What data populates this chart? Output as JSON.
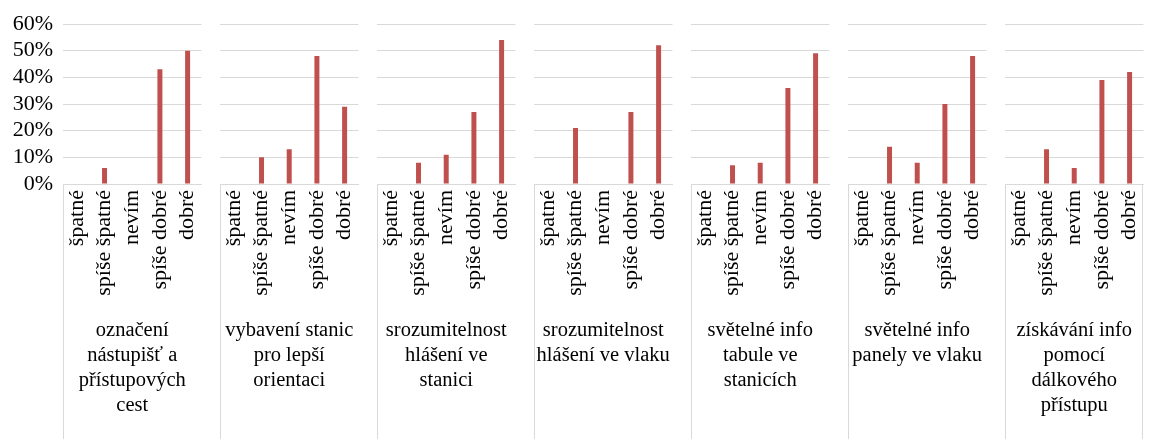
{
  "chart_data": [
    {
      "type": "bar",
      "xlabel": "označení nástupišť a přístupových cest",
      "categories": [
        "špatné",
        "spíše špatné",
        "nevím",
        "spíše dobré",
        "dobré"
      ],
      "values": [
        0,
        6,
        0,
        43,
        50
      ],
      "color": "#c0504d",
      "ylim": [
        0,
        60
      ],
      "yticks": [
        {
          "value": 0,
          "label": "0%"
        },
        {
          "value": 10,
          "label": "10%"
        },
        {
          "value": 20,
          "label": "20%"
        },
        {
          "value": 30,
          "label": "30%"
        },
        {
          "value": 40,
          "label": "40%"
        },
        {
          "value": 50,
          "label": "50%"
        },
        {
          "value": 60,
          "label": "60%"
        }
      ],
      "grid": "y"
    },
    {
      "type": "bar",
      "xlabel": "vybavení stanic pro lepší orientaci",
      "categories": [
        "špatné",
        "spíše špatné",
        "nevím",
        "spíše dobré",
        "dobré"
      ],
      "values": [
        0,
        10,
        13,
        48,
        29
      ],
      "color": "#c0504d",
      "ylim": [
        0,
        60
      ],
      "yticks": [
        {
          "value": 0,
          "label": null
        },
        {
          "value": 10,
          "label": null
        },
        {
          "value": 20,
          "label": null
        },
        {
          "value": 30,
          "label": null
        },
        {
          "value": 40,
          "label": null
        },
        {
          "value": 50,
          "label": null
        },
        {
          "value": 60,
          "label": null
        }
      ],
      "grid": "y",
      "tick_labels": "x"
    },
    {
      "type": "bar",
      "xlabel": "srozumitelnost hlášení ve stanici",
      "categories": [
        "špatné",
        "spíše špatné",
        "nevím",
        "spíše dobré",
        "dobré"
      ],
      "values": [
        0,
        8,
        11,
        27,
        54
      ],
      "color": "#c0504d",
      "ylim": [
        0,
        60
      ],
      "yticks": [
        {
          "value": 0,
          "label": null
        },
        {
          "value": 10,
          "label": null
        },
        {
          "value": 20,
          "label": null
        },
        {
          "value": 30,
          "label": null
        },
        {
          "value": 40,
          "label": null
        },
        {
          "value": 50,
          "label": null
        },
        {
          "value": 60,
          "label": null
        }
      ],
      "grid": "y",
      "tick_labels": "x"
    },
    {
      "type": "bar",
      "xlabel": "srozumitelnost hlášení ve vlaku",
      "categories": [
        "špatné",
        "spíše špatné",
        "nevím",
        "spíše dobré",
        "dobré"
      ],
      "values": [
        0,
        21,
        0,
        27,
        52
      ],
      "color": "#c0504d",
      "ylim": [
        0,
        60
      ],
      "yticks": [
        {
          "value": 0,
          "label": null
        },
        {
          "value": 10,
          "label": null
        },
        {
          "value": 20,
          "label": null
        },
        {
          "value": 30,
          "label": null
        },
        {
          "value": 40,
          "label": null
        },
        {
          "value": 50,
          "label": null
        },
        {
          "value": 60,
          "label": null
        }
      ],
      "grid": "y",
      "tick_labels": "x"
    },
    {
      "type": "bar",
      "xlabel": "světelné info tabule ve stanicích",
      "categories": [
        "špatné",
        "spíše špatné",
        "nevím",
        "spíše dobré",
        "dobré"
      ],
      "values": [
        0,
        7,
        8,
        36,
        49
      ],
      "color": "#c0504d",
      "ylim": [
        0,
        60
      ],
      "yticks": [
        {
          "value": 0,
          "label": null
        },
        {
          "value": 10,
          "label": null
        },
        {
          "value": 20,
          "label": null
        },
        {
          "value": 30,
          "label": null
        },
        {
          "value": 40,
          "label": null
        },
        {
          "value": 50,
          "label": null
        },
        {
          "value": 60,
          "label": null
        }
      ],
      "grid": "y",
      "tick_labels": "x"
    },
    {
      "type": "bar",
      "xlabel": "světelné info panely ve vlaku",
      "categories": [
        "špatné",
        "spíše špatné",
        "nevím",
        "spíše dobré",
        "dobré"
      ],
      "values": [
        0,
        14,
        8,
        30,
        48
      ],
      "color": "#c0504d",
      "ylim": [
        0,
        60
      ],
      "yticks": [
        {
          "value": 0,
          "label": null
        },
        {
          "value": 10,
          "label": null
        },
        {
          "value": 20,
          "label": null
        },
        {
          "value": 30,
          "label": null
        },
        {
          "value": 40,
          "label": null
        },
        {
          "value": 50,
          "label": null
        },
        {
          "value": 60,
          "label": null
        }
      ],
      "grid": "y",
      "tick_labels": "x"
    },
    {
      "type": "bar",
      "xlabel": "získávání info pomocí dálkového přístupu",
      "categories": [
        "špatné",
        "spíše špatné",
        "nevím",
        "spíše dobré",
        "dobré"
      ],
      "values": [
        0,
        13,
        6,
        39,
        42
      ],
      "color": "#c0504d",
      "ylim": [
        0,
        60
      ],
      "yticks": [
        {
          "value": 0,
          "label": null
        },
        {
          "value": 10,
          "label": null
        },
        {
          "value": 20,
          "label": null
        },
        {
          "value": 30,
          "label": null
        },
        {
          "value": 40,
          "label": null
        },
        {
          "value": 50,
          "label": null
        },
        {
          "value": 60,
          "label": null
        }
      ],
      "grid": "y",
      "tick_labels": "x"
    }
  ]
}
